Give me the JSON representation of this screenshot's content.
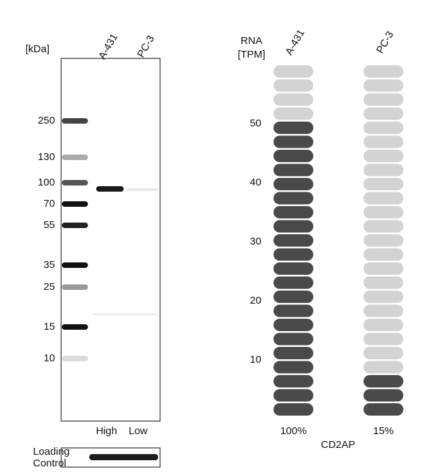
{
  "blot": {
    "unit_label": "[kDa]",
    "lanes": [
      "A-431",
      "PC-3"
    ],
    "markers": [
      "250",
      "130",
      "100",
      "70",
      "55",
      "35",
      "25",
      "15",
      "10"
    ],
    "expression": [
      "High",
      "Low"
    ],
    "loading_label": [
      "Loading",
      "Control"
    ]
  },
  "rna": {
    "axis_label": [
      "RNA",
      "[TPM]"
    ],
    "yticks": [
      10,
      20,
      30,
      40,
      50
    ],
    "total_pills": 25,
    "gene": "CD2AP",
    "columns": [
      {
        "name": "A-431",
        "filled": 21,
        "percent": "100%"
      },
      {
        "name": "PC-3",
        "filled": 3,
        "percent": "15%"
      }
    ]
  }
}
